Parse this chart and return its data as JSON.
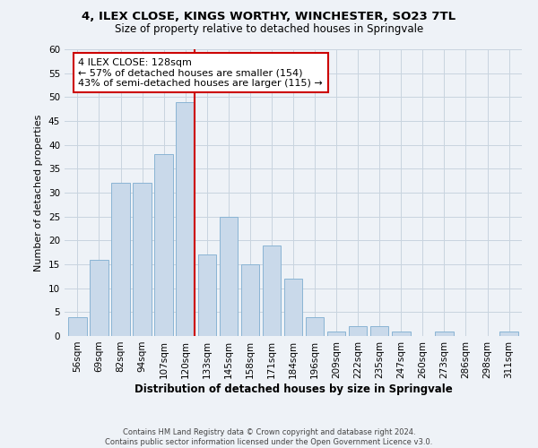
{
  "title": "4, ILEX CLOSE, KINGS WORTHY, WINCHESTER, SO23 7TL",
  "subtitle": "Size of property relative to detached houses in Springvale",
  "xlabel": "Distribution of detached houses by size in Springvale",
  "ylabel": "Number of detached properties",
  "footer_line1": "Contains HM Land Registry data © Crown copyright and database right 2024.",
  "footer_line2": "Contains public sector information licensed under the Open Government Licence v3.0.",
  "categories": [
    "56sqm",
    "69sqm",
    "82sqm",
    "94sqm",
    "107sqm",
    "120sqm",
    "133sqm",
    "145sqm",
    "158sqm",
    "171sqm",
    "184sqm",
    "196sqm",
    "209sqm",
    "222sqm",
    "235sqm",
    "247sqm",
    "260sqm",
    "273sqm",
    "286sqm",
    "298sqm",
    "311sqm"
  ],
  "values": [
    4,
    16,
    32,
    32,
    38,
    49,
    17,
    25,
    15,
    19,
    12,
    4,
    1,
    2,
    2,
    1,
    0,
    1,
    0,
    0,
    1
  ],
  "bar_color": "#c9d9ea",
  "bar_edge_color": "#8ab4d4",
  "grid_color": "#c8d4df",
  "background_color": "#eef2f7",
  "ylim": [
    0,
    60
  ],
  "yticks": [
    0,
    5,
    10,
    15,
    20,
    25,
    30,
    35,
    40,
    45,
    50,
    55,
    60
  ],
  "property_line_color": "#cc0000",
  "annotation_title": "4 ILEX CLOSE: 128sqm",
  "annotation_line1": "← 57% of detached houses are smaller (154)",
  "annotation_line2": "43% of semi-detached houses are larger (115) →",
  "annotation_box_facecolor": "#ffffff",
  "annotation_box_edgecolor": "#cc0000"
}
